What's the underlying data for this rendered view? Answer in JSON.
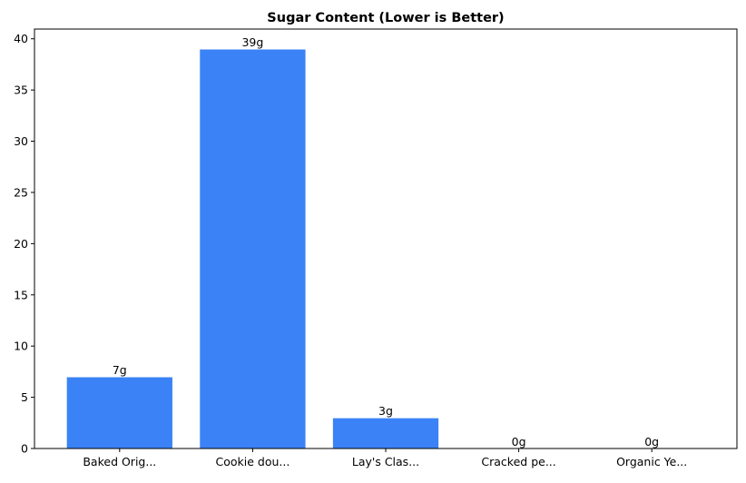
{
  "chart_data": {
    "type": "bar",
    "title": "Sugar Content (Lower is Better)",
    "xlabel": "",
    "ylabel": "",
    "categories": [
      "Baked Orig...",
      "Cookie dou...",
      "Lay's Clas...",
      "Cracked pe...",
      "Organic Ye..."
    ],
    "values": [
      7,
      39,
      3,
      0,
      0
    ],
    "data_labels": [
      "7g",
      "39g",
      "3g",
      "0g",
      "0g"
    ],
    "ylim": [
      0,
      40.95
    ],
    "yticks": [
      0,
      5,
      10,
      15,
      20,
      25,
      30,
      35,
      40
    ],
    "grid": false,
    "bar_color": "#3b82f6",
    "bar_edge_color": "#ffffff"
  }
}
